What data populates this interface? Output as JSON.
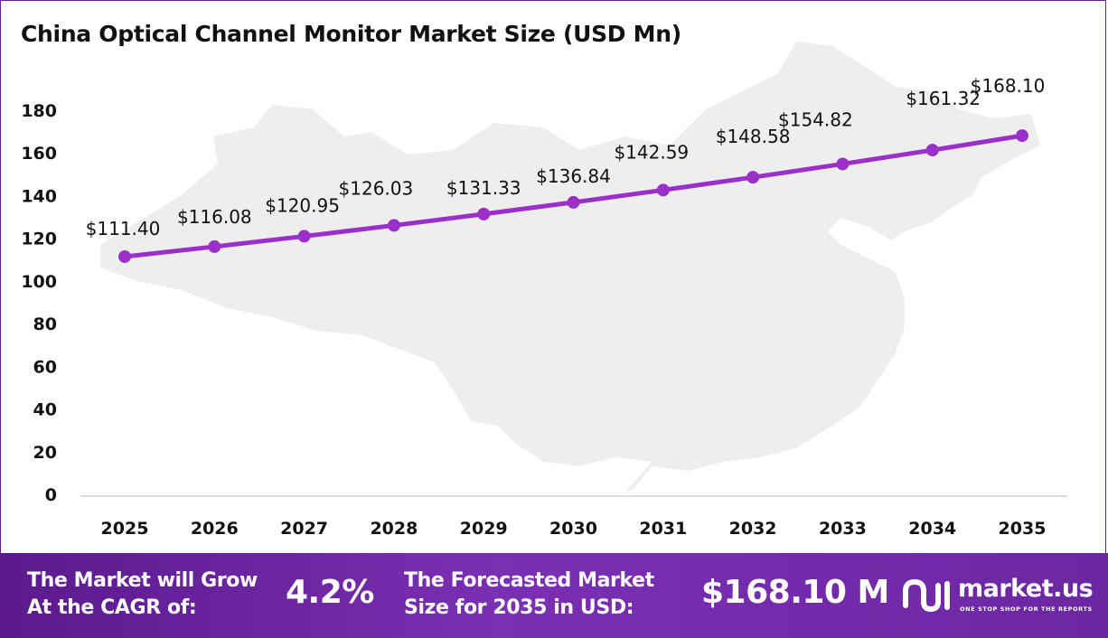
{
  "title": "China Optical Channel Monitor Market Size (USD Mn)",
  "colors": {
    "line": "#9b30c9",
    "marker": "#9b30c9",
    "footer": "#6c27a3",
    "map": "#eeeeee"
  },
  "chart_data": {
    "type": "line",
    "title": "China Optical Channel Monitor Market Size (USD Mn)",
    "categories": [
      "2025",
      "2026",
      "2027",
      "2028",
      "2029",
      "2030",
      "2031",
      "2032",
      "2033",
      "2034",
      "2035"
    ],
    "values": [
      111.4,
      116.08,
      120.95,
      126.03,
      131.33,
      136.84,
      142.59,
      148.58,
      154.82,
      161.32,
      168.1
    ],
    "data_labels": [
      "$111.40",
      "$116.08",
      "$120.95",
      "$126.03",
      "$131.33",
      "$136.84",
      "$142.59",
      "$148.58",
      "$154.82",
      "$161.32",
      "$168.10"
    ],
    "yticks": [
      "0",
      "20",
      "40",
      "60",
      "80",
      "100",
      "120",
      "140",
      "160",
      "180"
    ],
    "ylim": [
      0,
      180
    ],
    "xlabel": "",
    "ylabel": "",
    "grid": false,
    "legend": "none"
  },
  "footer": {
    "cagr_label_line1": "The Market will Grow",
    "cagr_label_line2": "At the CAGR of:",
    "cagr_value": "4.2%",
    "forecast_label_line1": "The Forecasted Market",
    "forecast_label_line2": "Size for 2035 in USD:",
    "forecast_value": "$168.10 M",
    "logo_name": "market.us",
    "logo_tagline": "ONE STOP SHOP FOR THE REPORTS"
  }
}
